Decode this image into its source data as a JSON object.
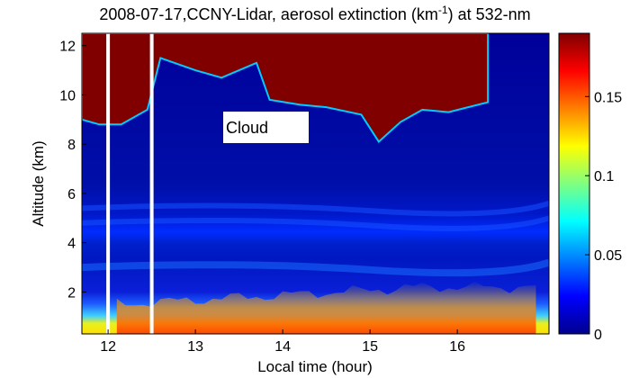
{
  "chart_data": {
    "type": "heatmap",
    "title_main": "2008-07-17,CCNY-Lidar, aerosol extinction (km",
    "title_sup": "-1",
    "title_tail": ") at 532-nm",
    "xlabel": "Local time (hour)",
    "ylabel": "Altitude (km)",
    "xlim": [
      11.7,
      17.05
    ],
    "ylim": [
      0.3,
      12.5
    ],
    "xticks": [
      "12",
      "13",
      "14",
      "15",
      "16"
    ],
    "yticks": [
      "2",
      "4",
      "6",
      "8",
      "10",
      "12"
    ],
    "colorbar": {
      "min": 0,
      "max": 0.19,
      "ticks": [
        "0",
        "0.05",
        "0.1",
        "0.15"
      ],
      "colormap": "jet"
    },
    "data_gaps_hours": [
      12.0,
      12.5
    ],
    "annotation": "Cloud",
    "cloud_base_km": [
      [
        11.7,
        9.0
      ],
      [
        11.9,
        8.8
      ],
      [
        12.15,
        8.8
      ],
      [
        12.45,
        9.4
      ],
      [
        12.6,
        11.5
      ],
      [
        13.0,
        11.0
      ],
      [
        13.3,
        10.7
      ],
      [
        13.7,
        11.3
      ],
      [
        13.85,
        9.8
      ],
      [
        14.2,
        9.6
      ],
      [
        14.5,
        9.5
      ],
      [
        14.9,
        9.2
      ],
      [
        15.1,
        8.1
      ],
      [
        15.35,
        8.9
      ],
      [
        15.6,
        9.4
      ],
      [
        15.9,
        9.3
      ],
      [
        16.35,
        9.7
      ]
    ],
    "aerosol_layer": {
      "boundary_layer_top_km": 2.0,
      "elevated_layers_km": [
        5.4,
        4.8,
        3.0
      ],
      "peak_extinction": 0.19
    }
  },
  "colors": {
    "background_low": "#00009a",
    "cloud": "#800000"
  }
}
